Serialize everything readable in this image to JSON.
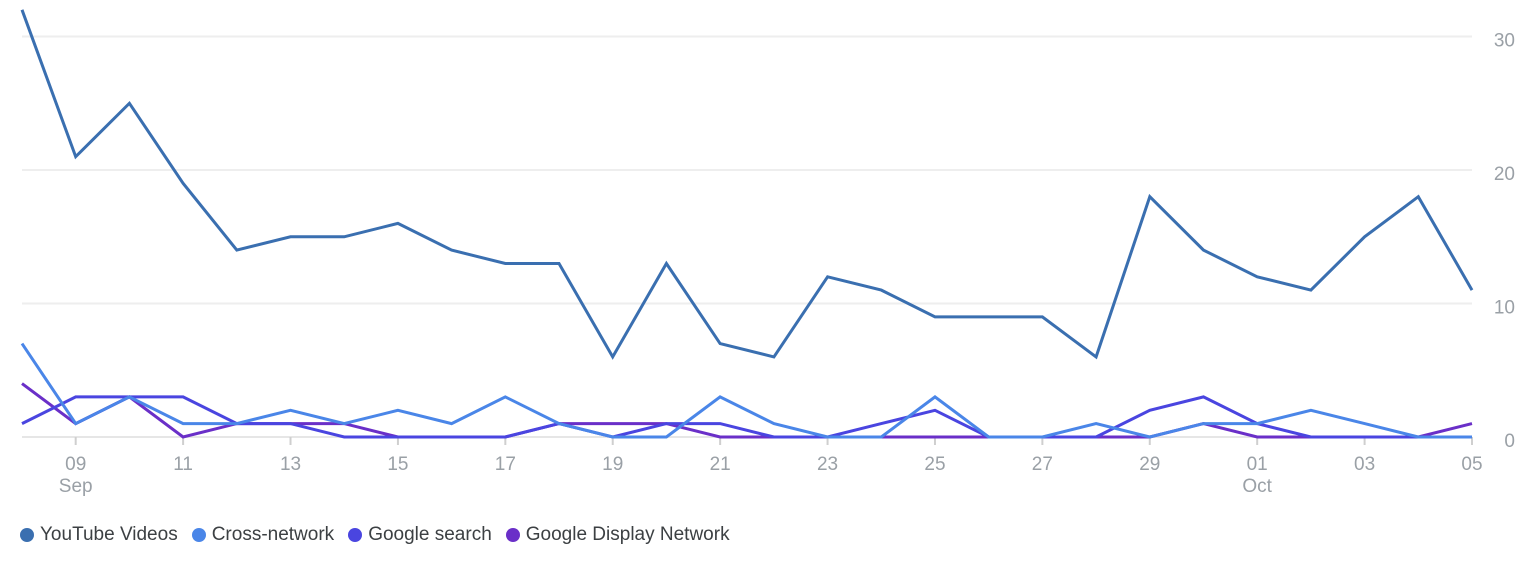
{
  "chart_data": {
    "type": "line",
    "x": [
      "2023-09-08",
      "2023-09-09",
      "2023-09-10",
      "2023-09-11",
      "2023-09-12",
      "2023-09-13",
      "2023-09-14",
      "2023-09-15",
      "2023-09-16",
      "2023-09-17",
      "2023-09-18",
      "2023-09-19",
      "2023-09-20",
      "2023-09-21",
      "2023-09-22",
      "2023-09-23",
      "2023-09-24",
      "2023-09-25",
      "2023-09-26",
      "2023-09-27",
      "2023-09-28",
      "2023-09-29",
      "2023-09-30",
      "2023-10-01",
      "2023-10-02",
      "2023-10-03",
      "2023-10-04",
      "2023-10-05"
    ],
    "x_ticks": [
      {
        "day": "09",
        "month": "Sep"
      },
      {
        "day": "11",
        "month": ""
      },
      {
        "day": "13",
        "month": ""
      },
      {
        "day": "15",
        "month": ""
      },
      {
        "day": "17",
        "month": ""
      },
      {
        "day": "19",
        "month": ""
      },
      {
        "day": "21",
        "month": ""
      },
      {
        "day": "23",
        "month": ""
      },
      {
        "day": "25",
        "month": ""
      },
      {
        "day": "27",
        "month": ""
      },
      {
        "day": "29",
        "month": ""
      },
      {
        "day": "01",
        "month": "Oct"
      },
      {
        "day": "03",
        "month": ""
      },
      {
        "day": "05",
        "month": ""
      }
    ],
    "y_ticks": [
      "0",
      "10",
      "20",
      "30"
    ],
    "ylim": [
      0,
      32
    ],
    "grid": true,
    "legend_position": "bottom-left",
    "series": [
      {
        "name": "YouTube Videos",
        "color": "#3a6fb0",
        "values": [
          32,
          21,
          25,
          19,
          14,
          15,
          15,
          16,
          14,
          13,
          13,
          6,
          13,
          7,
          6,
          12,
          11,
          9,
          9,
          9,
          6,
          18,
          14,
          12,
          11,
          15,
          18,
          11
        ]
      },
      {
        "name": "Cross-network",
        "color": "#4a86e8",
        "values": [
          7,
          1,
          3,
          1,
          1,
          2,
          1,
          2,
          1,
          3,
          1,
          0,
          0,
          3,
          1,
          0,
          0,
          3,
          0,
          0,
          1,
          0,
          1,
          1,
          2,
          1,
          0,
          0
        ]
      },
      {
        "name": "Google search",
        "color": "#4a45e0",
        "values": [
          1,
          3,
          3,
          3,
          1,
          1,
          0,
          0,
          0,
          0,
          1,
          0,
          1,
          1,
          0,
          0,
          1,
          2,
          0,
          0,
          0,
          2,
          3,
          1,
          0,
          0,
          0,
          0
        ]
      },
      {
        "name": "Google Display Network",
        "color": "#6a2fc8",
        "values": [
          4,
          1,
          3,
          0,
          1,
          1,
          1,
          0,
          0,
          0,
          1,
          1,
          1,
          0,
          0,
          0,
          0,
          0,
          0,
          0,
          0,
          0,
          1,
          0,
          0,
          0,
          0,
          1
        ]
      }
    ]
  }
}
